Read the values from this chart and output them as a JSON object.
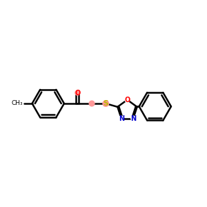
{
  "bg_color": "#ffffff",
  "bond_color": "#000000",
  "o_color": "#ff0000",
  "n_color": "#0000cc",
  "s_color": "#bbbb00",
  "pink": "#ff9999",
  "atom_r": 0.115,
  "s_r": 0.145,
  "ch2_r": 0.13,
  "lw": 1.8,
  "figsize": [
    3.0,
    3.0
  ],
  "dpi": 100,
  "xlim": [
    0,
    10
  ],
  "ylim": [
    2,
    8
  ]
}
